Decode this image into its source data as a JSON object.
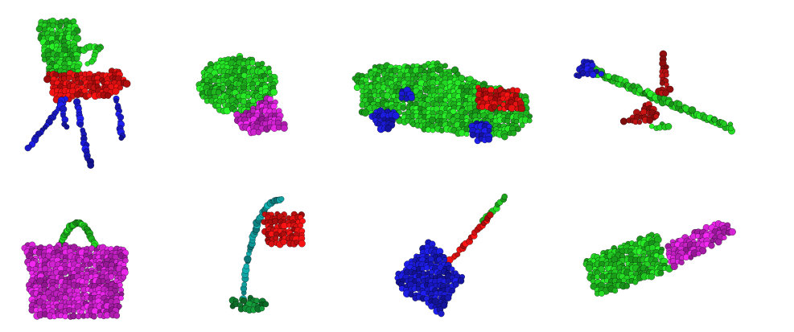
{
  "figure": {
    "objects": [
      {
        "name": "chair",
        "parts": [
          {
            "part": "back",
            "color": "#22cc22"
          },
          {
            "part": "seat",
            "color": "#dd1111"
          },
          {
            "part": "legs",
            "color": "#1a1acc"
          }
        ]
      },
      {
        "name": "cap",
        "parts": [
          {
            "part": "crown",
            "color": "#22cc22"
          },
          {
            "part": "visor",
            "color": "#cc22cc"
          }
        ]
      },
      {
        "name": "car",
        "parts": [
          {
            "part": "body",
            "color": "#22cc22"
          },
          {
            "part": "hood",
            "color": "#dd1111"
          },
          {
            "part": "wheels",
            "color": "#1a1acc"
          }
        ]
      },
      {
        "name": "airplane",
        "parts": [
          {
            "part": "fuselage",
            "color": "#22cc22"
          },
          {
            "part": "wings",
            "color": "#aa1111"
          },
          {
            "part": "tail",
            "color": "#1a1acc"
          }
        ]
      },
      {
        "name": "bag",
        "parts": [
          {
            "part": "handle",
            "color": "#22cc22"
          },
          {
            "part": "body",
            "color": "#cc22cc"
          }
        ]
      },
      {
        "name": "lamp",
        "parts": [
          {
            "part": "shade",
            "color": "#dd1111"
          },
          {
            "part": "arm",
            "color": "#119999"
          },
          {
            "part": "base",
            "color": "#118833"
          }
        ]
      },
      {
        "name": "guitar",
        "parts": [
          {
            "part": "headstock",
            "color": "#22cc22"
          },
          {
            "part": "neck",
            "color": "#dd1111"
          },
          {
            "part": "body",
            "color": "#1a1acc"
          }
        ]
      },
      {
        "name": "knife",
        "parts": [
          {
            "part": "blade",
            "color": "#22cc22"
          },
          {
            "part": "handle",
            "color": "#cc22cc"
          }
        ]
      }
    ],
    "outline_color": "#000000"
  }
}
